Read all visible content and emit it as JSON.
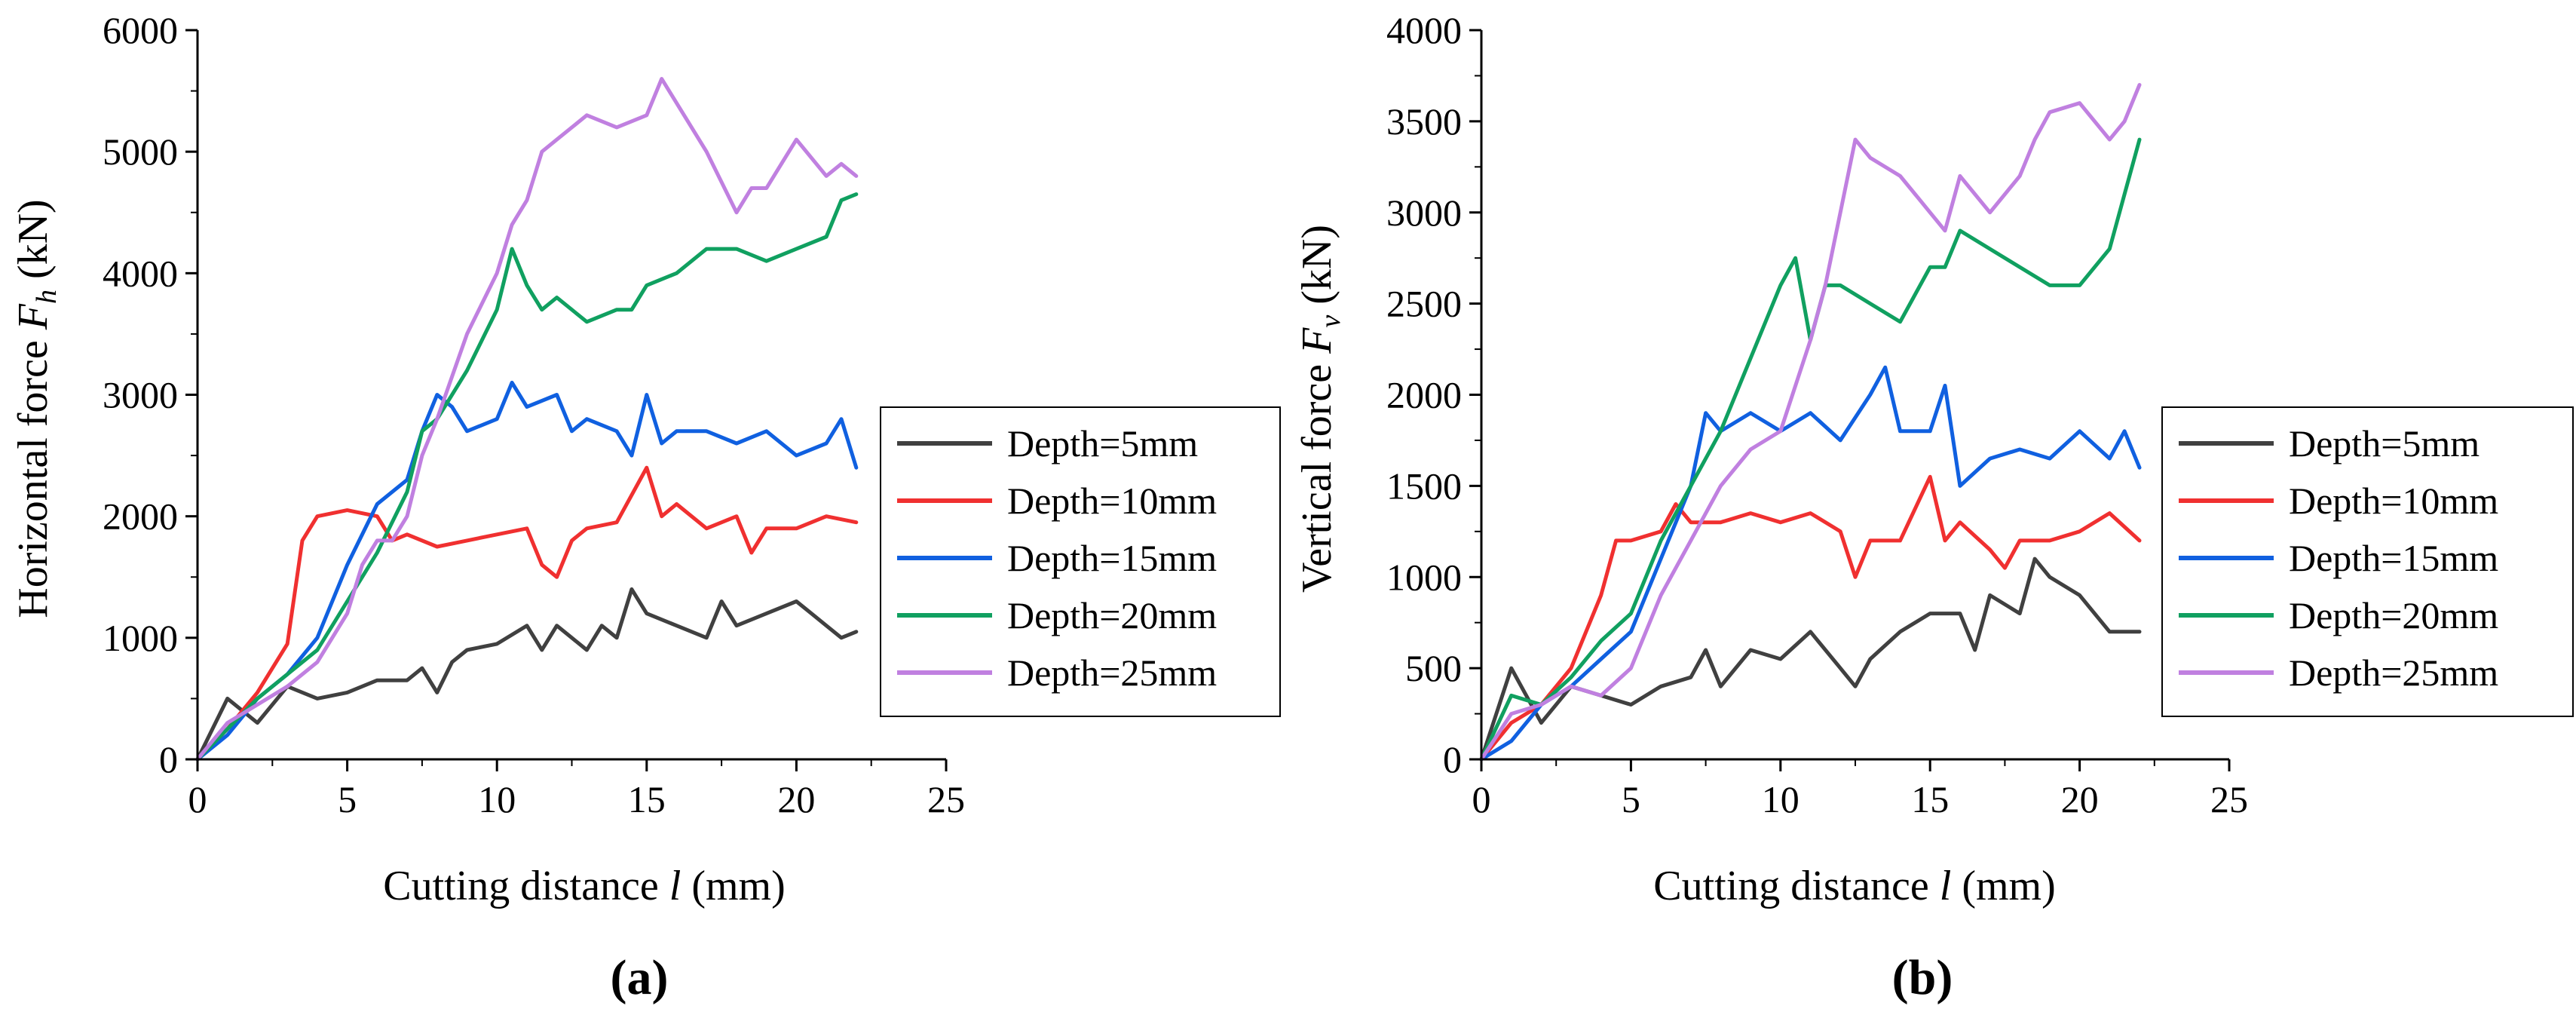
{
  "figure": {
    "panels": [
      {
        "panel_label": "(a)"
      },
      {
        "panel_label": "(b)"
      }
    ]
  },
  "chart_data": [
    {
      "type": "line",
      "panel": "(a)",
      "title": "",
      "xlabel": "Cutting distance l (mm)",
      "xlabel_parts": {
        "pre": "Cutting distance ",
        "var": "l",
        "post": " (mm)"
      },
      "ylabel": "Horizontal force Fh (kN)",
      "ylabel_parts": {
        "pre": "Horizontal force ",
        "var": "F",
        "sub": "h",
        "post": " (kN)"
      },
      "xlim": [
        0,
        25
      ],
      "ylim": [
        0,
        6000
      ],
      "xticks": [
        0,
        5,
        10,
        15,
        20,
        25
      ],
      "yticks": [
        0,
        1000,
        2000,
        3000,
        4000,
        5000,
        6000
      ],
      "legend_position": "right",
      "series": [
        {
          "name": "Depth=5mm",
          "color": "#404040",
          "x": [
            0,
            1,
            2,
            3,
            4,
            5,
            6,
            7,
            7.5,
            8,
            8.5,
            9,
            10,
            11,
            11.5,
            12,
            13,
            13.5,
            14,
            14.5,
            15,
            16,
            17,
            17.5,
            18,
            19,
            20,
            20.5,
            21,
            21.5,
            22
          ],
          "y": [
            0,
            500,
            300,
            600,
            500,
            550,
            650,
            650,
            750,
            550,
            800,
            900,
            950,
            1100,
            900,
            1100,
            900,
            1100,
            1000,
            1400,
            1200,
            1100,
            1000,
            1300,
            1100,
            1200,
            1300,
            1200,
            1100,
            1000,
            1050
          ]
        },
        {
          "name": "Depth=10mm",
          "color": "#f03030",
          "x": [
            0,
            1,
            2,
            3,
            3.5,
            4,
            5,
            6,
            6.5,
            7,
            8,
            9,
            10,
            11,
            11.5,
            12,
            12.5,
            13,
            14,
            15,
            15.5,
            16,
            17,
            18,
            18.5,
            19,
            20,
            21,
            22
          ],
          "y": [
            0,
            250,
            550,
            950,
            1800,
            2000,
            2050,
            2000,
            1800,
            1850,
            1750,
            1800,
            1850,
            1900,
            1600,
            1500,
            1800,
            1900,
            1950,
            2400,
            2000,
            2100,
            1900,
            2000,
            1700,
            1900,
            1900,
            2000,
            1950
          ]
        },
        {
          "name": "Depth=15mm",
          "color": "#1060e0",
          "x": [
            0,
            1,
            2,
            3,
            4,
            5,
            6,
            7,
            7.5,
            8,
            8.5,
            9,
            10,
            10.5,
            11,
            12,
            12.5,
            13,
            14,
            14.5,
            15,
            15.5,
            16,
            17,
            18,
            19,
            20,
            21,
            21.5,
            22
          ],
          "y": [
            0,
            200,
            500,
            700,
            1000,
            1600,
            2100,
            2300,
            2700,
            3000,
            2900,
            2700,
            2800,
            3100,
            2900,
            3000,
            2700,
            2800,
            2700,
            2500,
            3000,
            2600,
            2700,
            2700,
            2600,
            2700,
            2500,
            2600,
            2800,
            2400
          ]
        },
        {
          "name": "Depth=20mm",
          "color": "#10a060",
          "x": [
            0,
            1,
            2,
            3,
            4,
            5,
            6,
            7,
            7.5,
            8,
            9,
            10,
            10.5,
            11,
            11.5,
            12,
            13,
            14,
            14.5,
            15,
            16,
            17,
            18,
            19,
            20,
            21,
            21.5,
            22
          ],
          "y": [
            0,
            250,
            500,
            700,
            900,
            1300,
            1700,
            2200,
            2700,
            2800,
            3200,
            3700,
            4200,
            3900,
            3700,
            3800,
            3600,
            3700,
            3700,
            3900,
            4000,
            4200,
            4200,
            4100,
            4200,
            4300,
            4600,
            4650
          ]
        },
        {
          "name": "Depth=25mm",
          "color": "#c080e0",
          "x": [
            0,
            1,
            2,
            3,
            4,
            5,
            5.5,
            6,
            6.5,
            7,
            7.5,
            8,
            9,
            10,
            10.5,
            11,
            11.5,
            12,
            13,
            14,
            15,
            15.5,
            16,
            17,
            18,
            18.5,
            19,
            19.5,
            20,
            21,
            21.5,
            22
          ],
          "y": [
            0,
            300,
            450,
            600,
            800,
            1200,
            1600,
            1800,
            1800,
            2000,
            2500,
            2800,
            3500,
            4000,
            4400,
            4600,
            5000,
            5100,
            5300,
            5200,
            5300,
            5600,
            5400,
            5000,
            4500,
            4700,
            4700,
            4900,
            5100,
            4800,
            4900,
            4800
          ]
        }
      ]
    },
    {
      "type": "line",
      "panel": "(b)",
      "title": "",
      "xlabel": "Cutting distance l (mm)",
      "xlabel_parts": {
        "pre": "Cutting distance ",
        "var": "l",
        "post": " (mm)"
      },
      "ylabel": "Vertical force Fv (kN)",
      "ylabel_parts": {
        "pre": "Vertical force ",
        "var": "F",
        "sub": "v",
        "post": " (kN)"
      },
      "xlim": [
        0,
        25
      ],
      "ylim": [
        0,
        4000
      ],
      "xticks": [
        0,
        5,
        10,
        15,
        20,
        25
      ],
      "yticks": [
        0,
        500,
        1000,
        1500,
        2000,
        2500,
        3000,
        3500,
        4000
      ],
      "legend_position": "right",
      "series": [
        {
          "name": "Depth=5mm",
          "color": "#404040",
          "x": [
            0,
            1,
            2,
            3,
            4,
            5,
            6,
            7,
            7.5,
            8,
            9,
            10,
            11,
            12,
            12.5,
            13,
            14,
            15,
            16,
            16.5,
            17,
            18,
            18.5,
            19,
            20,
            21,
            22
          ],
          "y": [
            0,
            500,
            200,
            400,
            350,
            300,
            400,
            450,
            600,
            400,
            600,
            550,
            700,
            500,
            400,
            550,
            700,
            800,
            800,
            600,
            900,
            800,
            1100,
            1000,
            900,
            700,
            700
          ]
        },
        {
          "name": "Depth=10mm",
          "color": "#f03030",
          "x": [
            0,
            1,
            2,
            3,
            4,
            4.5,
            5,
            6,
            6.5,
            7,
            8,
            9,
            10,
            11,
            12,
            12.5,
            13,
            14,
            15,
            15.5,
            16,
            17,
            17.5,
            18,
            19,
            20,
            21,
            22
          ],
          "y": [
            0,
            200,
            300,
            500,
            900,
            1200,
            1200,
            1250,
            1400,
            1300,
            1300,
            1350,
            1300,
            1350,
            1250,
            1000,
            1200,
            1200,
            1550,
            1200,
            1300,
            1150,
            1050,
            1200,
            1200,
            1250,
            1350,
            1200
          ]
        },
        {
          "name": "Depth=15mm",
          "color": "#1060e0",
          "x": [
            0,
            1,
            2,
            3,
            4,
            5,
            6,
            7,
            7.5,
            8,
            9,
            10,
            11,
            12,
            13,
            13.5,
            14,
            15,
            15.5,
            16,
            17,
            18,
            19,
            20,
            21,
            21.5,
            22
          ],
          "y": [
            0,
            100,
            300,
            400,
            550,
            700,
            1100,
            1500,
            1900,
            1800,
            1900,
            1800,
            1900,
            1750,
            2000,
            2150,
            1800,
            1800,
            2050,
            1500,
            1650,
            1700,
            1650,
            1800,
            1650,
            1800,
            1600
          ]
        },
        {
          "name": "Depth=20mm",
          "color": "#10a060",
          "x": [
            0,
            1,
            2,
            3,
            4,
            5,
            6,
            7,
            8,
            9,
            10,
            10.5,
            11,
            11.5,
            12,
            13,
            14,
            15,
            15.5,
            16,
            17,
            18,
            19,
            20,
            21,
            21.5,
            22
          ],
          "y": [
            0,
            350,
            300,
            450,
            650,
            800,
            1200,
            1500,
            1800,
            2200,
            2600,
            2750,
            2300,
            2600,
            2600,
            2500,
            2400,
            2700,
            2700,
            2900,
            2800,
            2700,
            2600,
            2600,
            2800,
            3100,
            3400
          ]
        },
        {
          "name": "Depth=25mm",
          "color": "#c080e0",
          "x": [
            0,
            1,
            2,
            3,
            4,
            5,
            6,
            7,
            8,
            9,
            10,
            11,
            11.5,
            12,
            12.5,
            13,
            14,
            14.5,
            15,
            15.5,
            16,
            17,
            18,
            18.5,
            19,
            20,
            21,
            21.5,
            22
          ],
          "y": [
            0,
            250,
            300,
            400,
            350,
            500,
            900,
            1200,
            1500,
            1700,
            1800,
            2300,
            2600,
            3000,
            3400,
            3300,
            3200,
            3100,
            3000,
            2900,
            3200,
            3000,
            3200,
            3400,
            3550,
            3600,
            3400,
            3500,
            3700
          ]
        }
      ]
    }
  ]
}
